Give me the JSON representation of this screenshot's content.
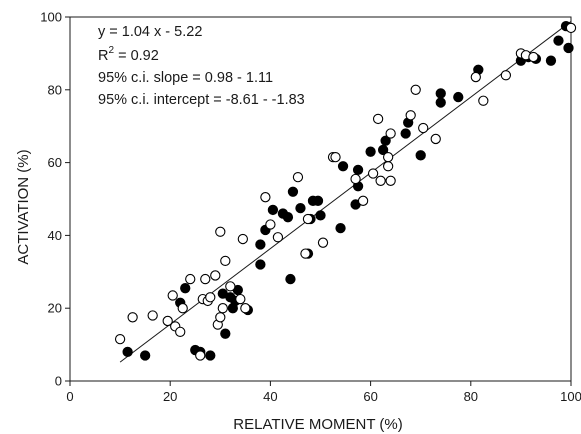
{
  "chart_data": {
    "type": "scatter",
    "title": "",
    "xlabel": "RELATIVE MOMENT (%)",
    "ylabel": "ACTIVATION (%)",
    "xlim": [
      0,
      100
    ],
    "ylim": [
      0,
      100
    ],
    "xticks": [
      0,
      20,
      40,
      60,
      80,
      100
    ],
    "yticks": [
      0,
      20,
      40,
      60,
      80,
      100
    ],
    "annotations": {
      "equation": "y = 1.04 x - 5.22",
      "r2_label": "R",
      "r2_exponent": "2",
      "r2_value": " = 0.92",
      "slope_ci": "95% c.i. slope = 0.98 - 1.11",
      "intercept_ci": "95% c.i. intercept = -8.61 - -1.83"
    },
    "regression_line": {
      "slope": 1.04,
      "intercept": -5.22,
      "x_start": 10,
      "x_end": 100
    },
    "series": [
      {
        "marker": "filled",
        "color": "#000000",
        "points": [
          [
            11.5,
            8.0
          ],
          [
            15,
            7.0
          ],
          [
            22,
            21.5
          ],
          [
            23,
            25.5
          ],
          [
            25,
            8.5
          ],
          [
            26,
            8.0
          ],
          [
            28,
            7.0
          ],
          [
            30.5,
            24.0
          ],
          [
            31,
            13.0
          ],
          [
            32,
            23.0
          ],
          [
            32.5,
            20.0
          ],
          [
            33,
            22.0
          ],
          [
            33.5,
            25.0
          ],
          [
            35.5,
            19.5
          ],
          [
            38,
            32.0
          ],
          [
            38,
            37.5
          ],
          [
            39,
            41.5
          ],
          [
            40.5,
            47.0
          ],
          [
            42.5,
            46.0
          ],
          [
            43.5,
            45.0
          ],
          [
            44,
            28.0
          ],
          [
            44.5,
            52.0
          ],
          [
            46,
            47.5
          ],
          [
            47.5,
            35.0
          ],
          [
            48,
            44.5
          ],
          [
            48.5,
            49.5
          ],
          [
            49.5,
            49.5
          ],
          [
            50,
            45.5
          ],
          [
            54,
            42.0
          ],
          [
            54.5,
            59.0
          ],
          [
            57,
            48.5
          ],
          [
            57.5,
            53.5
          ],
          [
            57.5,
            58.0
          ],
          [
            60,
            63.0
          ],
          [
            62.5,
            63.5
          ],
          [
            63,
            66.0
          ],
          [
            67,
            68.0
          ],
          [
            67.5,
            71.0
          ],
          [
            70,
            62.0
          ],
          [
            74,
            76.5
          ],
          [
            74,
            79.0
          ],
          [
            77.5,
            78.0
          ],
          [
            81.5,
            85.5
          ],
          [
            90,
            88.0
          ],
          [
            91.5,
            89.0
          ],
          [
            93,
            88.5
          ],
          [
            96,
            88.0
          ],
          [
            97.5,
            93.5
          ],
          [
            99,
            97.5
          ],
          [
            99.5,
            91.5
          ]
        ]
      },
      {
        "marker": "open",
        "color": "#000000",
        "points": [
          [
            10,
            11.5
          ],
          [
            12.5,
            17.5
          ],
          [
            16.5,
            18.0
          ],
          [
            19.5,
            16.5
          ],
          [
            20.5,
            23.5
          ],
          [
            21,
            15.0
          ],
          [
            22,
            13.5
          ],
          [
            22.5,
            20.0
          ],
          [
            24,
            28.0
          ],
          [
            26,
            7.0
          ],
          [
            26.5,
            22.5
          ],
          [
            27,
            28.0
          ],
          [
            27.5,
            22.0
          ],
          [
            28,
            23.0
          ],
          [
            29,
            29.0
          ],
          [
            29.5,
            15.5
          ],
          [
            30,
            41.0
          ],
          [
            30,
            17.5
          ],
          [
            30.5,
            20.0
          ],
          [
            31,
            33.0
          ],
          [
            32,
            26.0
          ],
          [
            34,
            22.5
          ],
          [
            34.5,
            39.0
          ],
          [
            35,
            20.0
          ],
          [
            39,
            50.5
          ],
          [
            40,
            43.0
          ],
          [
            41.5,
            39.5
          ],
          [
            45.5,
            56.0
          ],
          [
            47,
            35.0
          ],
          [
            47.5,
            44.5
          ],
          [
            50.5,
            38.0
          ],
          [
            52.5,
            61.5
          ],
          [
            53,
            61.5
          ],
          [
            57,
            55.5
          ],
          [
            58.5,
            49.5
          ],
          [
            60.5,
            57.0
          ],
          [
            61.5,
            72.0
          ],
          [
            62,
            55.0
          ],
          [
            63.5,
            61.5
          ],
          [
            63.5,
            59.0
          ],
          [
            64,
            55.0
          ],
          [
            64,
            68.0
          ],
          [
            68,
            73.0
          ],
          [
            69,
            80.0
          ],
          [
            70.5,
            69.5
          ],
          [
            73,
            66.5
          ],
          [
            81,
            83.5
          ],
          [
            82.5,
            77.0
          ],
          [
            87,
            84.0
          ],
          [
            90,
            90.0
          ],
          [
            91,
            89.5
          ],
          [
            92.5,
            89.0
          ],
          [
            100,
            97.0
          ]
        ]
      }
    ]
  }
}
